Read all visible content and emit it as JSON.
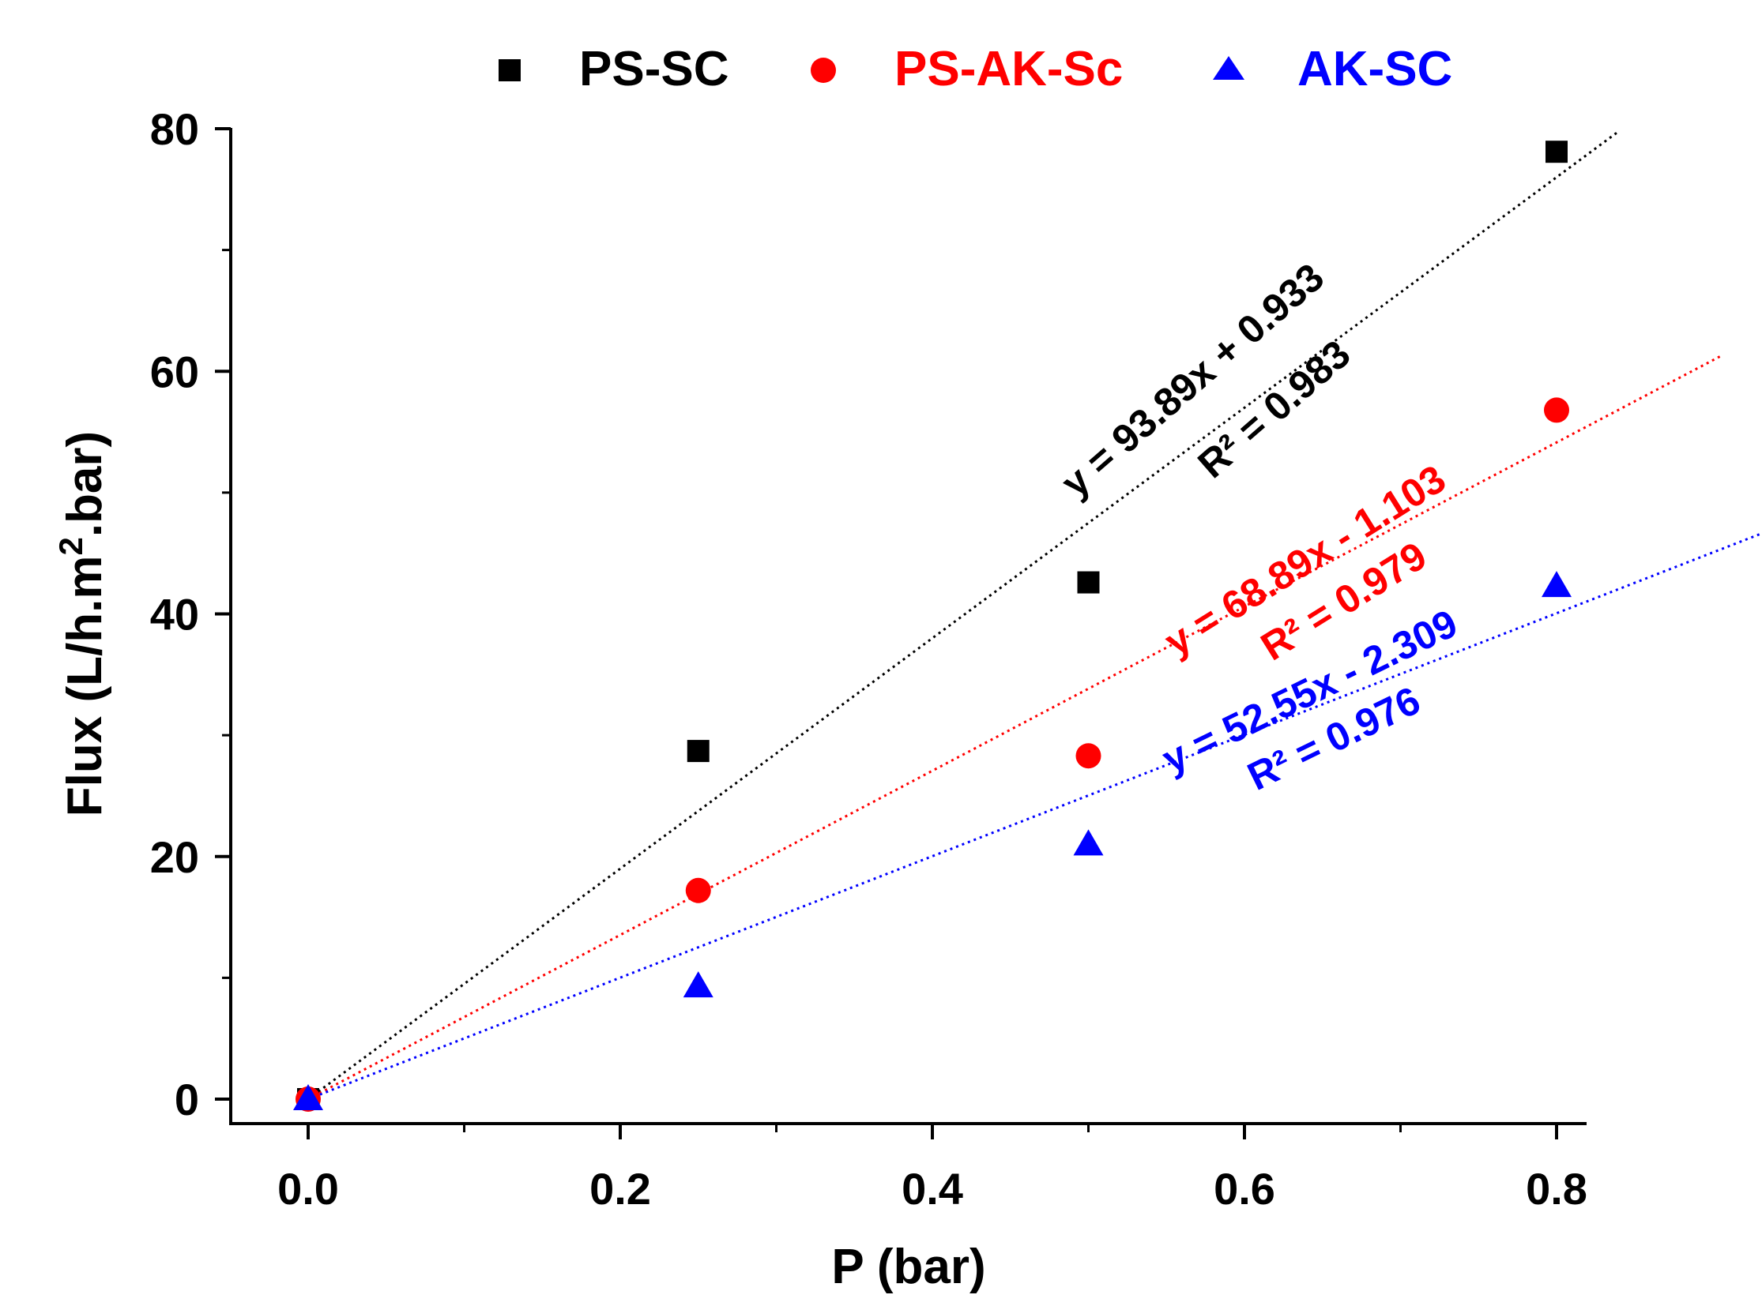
{
  "chart_data": {
    "type": "scatter",
    "xlabel": "P (bar)",
    "ylabel": "Flux (L/h.m",
    "ylabel_sup": "2",
    "ylabel_tail": ".bar)",
    "xlim": [
      -0.05,
      0.82
    ],
    "ylim": [
      -2,
      80
    ],
    "x_ticks": [
      0.0,
      0.2,
      0.4,
      0.6,
      0.8
    ],
    "x_tick_labels": [
      "0.0",
      "0.2",
      "0.4",
      "0.6",
      "0.8"
    ],
    "x_minor_ticks": [
      0.1,
      0.3,
      0.5,
      0.7
    ],
    "y_ticks": [
      0,
      20,
      40,
      60,
      80
    ],
    "y_tick_labels": [
      "0",
      "20",
      "40",
      "60",
      "80"
    ],
    "y_minor_ticks": [
      10,
      30,
      50,
      70
    ],
    "legend_position": "top",
    "series": [
      {
        "name": "PS-SC",
        "color": "#000000",
        "marker": "square",
        "x": [
          0,
          0.25,
          0.5,
          0.8
        ],
        "y": [
          0,
          28.7,
          42.6,
          78.1
        ],
        "fit": {
          "slope": 93.89,
          "intercept": 0.933,
          "x_end": 0.84,
          "style": "dotted"
        },
        "equation": "y = 93.89x + 0.933",
        "r2": "R² = 0.983"
      },
      {
        "name": "PS-AK-Sc",
        "color": "#ff0000",
        "marker": "circle",
        "x": [
          0,
          0.25,
          0.5,
          0.8
        ],
        "y": [
          0,
          17.2,
          28.3,
          56.8
        ],
        "fit": {
          "slope": 68.89,
          "intercept": -1.103,
          "x_end": 0.905,
          "style": "dotted"
        },
        "equation": "y = 68.89x - 1.103",
        "r2": "R² = 0.979"
      },
      {
        "name": "AK-SC",
        "color": "#0000ff",
        "marker": "triangle",
        "x": [
          0,
          0.25,
          0.5,
          0.8
        ],
        "y": [
          0,
          9.3,
          21.0,
          42.3
        ],
        "fit": {
          "slope": 52.55,
          "intercept": -2.309,
          "x_end": 0.93,
          "style": "dotted"
        },
        "equation": "y = 52.55x - 2.309",
        "r2": "R² = 0.976"
      }
    ]
  }
}
